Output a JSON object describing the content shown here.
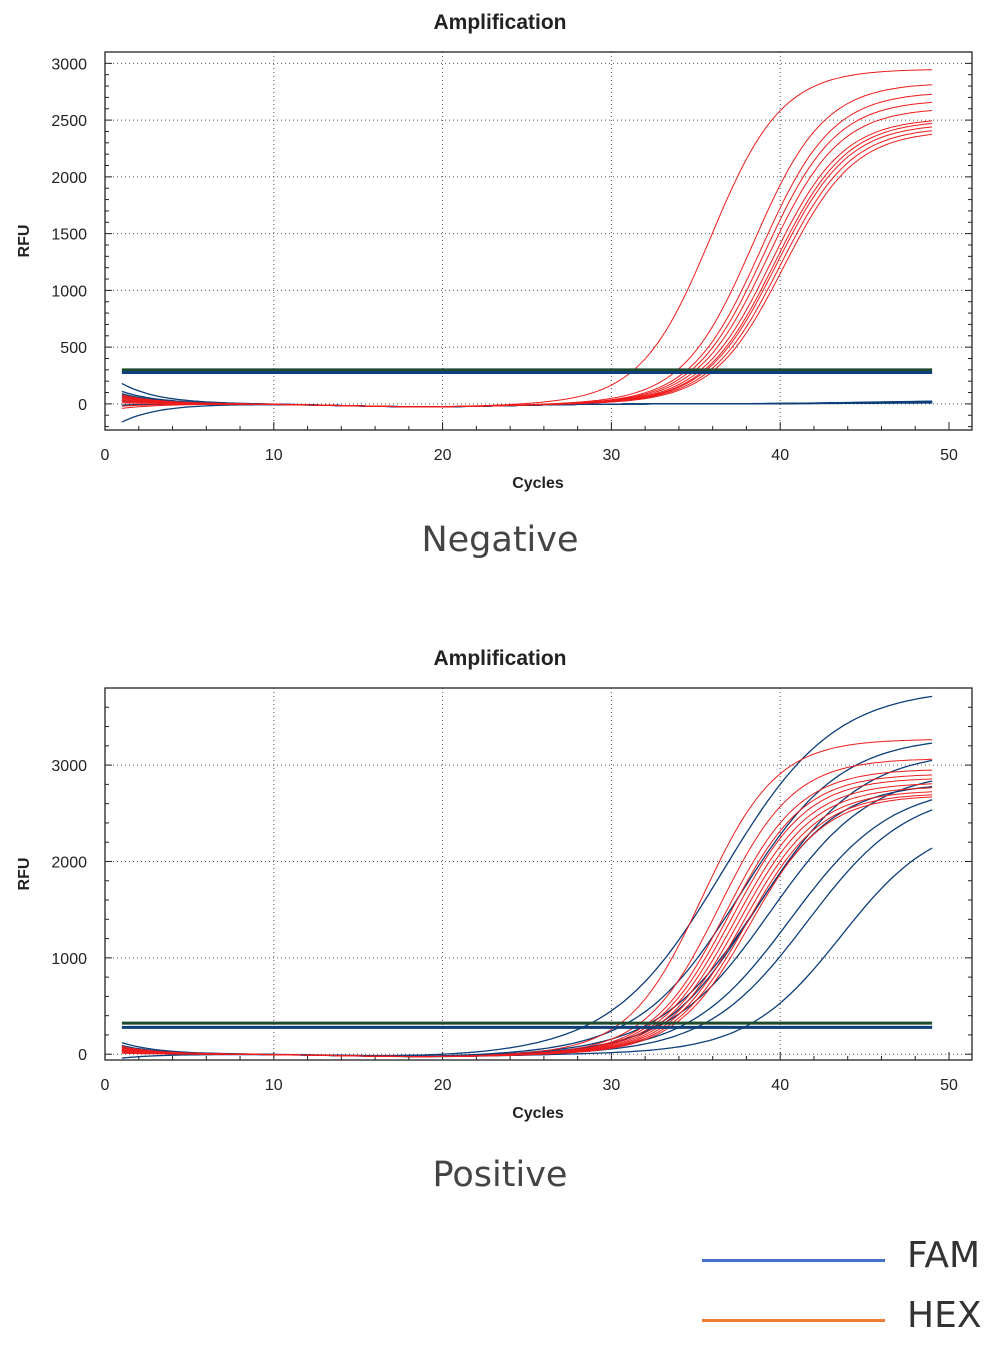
{
  "colors": {
    "hex_curve": "#ee1c1c",
    "fam_curve": "#0d3f7a",
    "threshold_green": "#1e4a2e",
    "threshold_blue": "#0d3f7a",
    "legend_fam": "#4472c4",
    "legend_hex": "#ed7d31"
  },
  "legend": [
    {
      "label": "FAM",
      "color": "#4472c4"
    },
    {
      "label": "HEX",
      "color": "#ed7d31"
    }
  ],
  "chart_data": [
    {
      "type": "line",
      "title": "Amplification",
      "xlabel": "Cycles",
      "ylabel": "RFU",
      "caption": "Negative",
      "xlim": [
        0,
        50
      ],
      "ylim": [
        -230,
        3100
      ],
      "xticks": [
        0,
        10,
        20,
        30,
        40,
        50
      ],
      "yticks": [
        0,
        500,
        1000,
        1500,
        2000,
        2500,
        3000
      ],
      "grid": true,
      "thresholds": [
        {
          "channel": "HEX",
          "value": 300
        },
        {
          "channel": "FAM",
          "value": 276
        }
      ],
      "cycles": [
        1,
        49
      ],
      "series": [
        {
          "channel": "HEX",
          "curves": [
            {
              "plateau": 2950,
              "midpoint": 35.9,
              "slope": 2.1,
              "start": 60
            },
            {
              "plateau": 2830,
              "midpoint": 38.4,
              "slope": 2.1,
              "start": 40
            },
            {
              "plateau": 2750,
              "midpoint": 38.9,
              "slope": 2.1,
              "start": 20
            },
            {
              "plateau": 2680,
              "midpoint": 39.1,
              "slope": 2.1,
              "start": -40
            },
            {
              "plateau": 2610,
              "midpoint": 39.3,
              "slope": 2.1,
              "start": 70
            },
            {
              "plateau": 2520,
              "midpoint": 39.5,
              "slope": 2.1,
              "start": 30
            },
            {
              "plateau": 2500,
              "midpoint": 39.7,
              "slope": 2.1,
              "start": 10
            },
            {
              "plateau": 2470,
              "midpoint": 39.8,
              "slope": 2.1,
              "start": 50
            },
            {
              "plateau": 2440,
              "midpoint": 40.0,
              "slope": 2.1,
              "start": -20
            },
            {
              "plateau": 2410,
              "midpoint": 40.2,
              "slope": 2.1,
              "start": 80
            }
          ]
        },
        {
          "channel": "FAM",
          "curves": [
            {
              "plateau": 20,
              "midpoint": 45,
              "slope": 3,
              "start": 180
            },
            {
              "plateau": 25,
              "midpoint": 45,
              "slope": 3,
              "start": 90
            },
            {
              "plateau": 15,
              "midpoint": 45,
              "slope": 3,
              "start": 60
            },
            {
              "plateau": 30,
              "midpoint": 45,
              "slope": 3,
              "start": 30
            },
            {
              "plateau": 10,
              "midpoint": 45,
              "slope": 3,
              "start": -10
            },
            {
              "plateau": 20,
              "midpoint": 45,
              "slope": 3,
              "start": -160
            },
            {
              "plateau": 25,
              "midpoint": 45,
              "slope": 3,
              "start": 70
            },
            {
              "plateau": 15,
              "midpoint": 45,
              "slope": 3,
              "start": 110
            }
          ]
        }
      ]
    },
    {
      "type": "line",
      "title": "Amplification",
      "xlabel": "Cycles",
      "ylabel": "RFU",
      "caption": "Positive",
      "xlim": [
        0,
        50
      ],
      "ylim": [
        -60,
        3800
      ],
      "xticks": [
        0,
        10,
        20,
        30,
        40,
        50
      ],
      "yticks": [
        0,
        1000,
        2000,
        3000
      ],
      "grid": true,
      "thresholds": [
        {
          "channel": "HEX",
          "value": 323
        },
        {
          "channel": "FAM",
          "value": 278
        }
      ],
      "cycles": [
        1,
        49
      ],
      "series": [
        {
          "channel": "HEX",
          "curves": [
            {
              "plateau": 3270,
              "midpoint": 35.4,
              "slope": 2.2,
              "start": 60
            },
            {
              "plateau": 3070,
              "midpoint": 36.4,
              "slope": 2.2,
              "start": 40
            },
            {
              "plateau": 2960,
              "midpoint": 36.8,
              "slope": 2.2,
              "start": 20
            },
            {
              "plateau": 2910,
              "midpoint": 37.0,
              "slope": 2.2,
              "start": 80
            },
            {
              "plateau": 2870,
              "midpoint": 37.2,
              "slope": 2.2,
              "start": 30
            },
            {
              "plateau": 2820,
              "midpoint": 37.4,
              "slope": 2.2,
              "start": 50
            },
            {
              "plateau": 2780,
              "midpoint": 37.6,
              "slope": 2.2,
              "start": 10
            },
            {
              "plateau": 2740,
              "midpoint": 37.8,
              "slope": 2.2,
              "start": 70
            },
            {
              "plateau": 2710,
              "midpoint": 38.0,
              "slope": 2.2,
              "start": 40
            },
            {
              "plateau": 2690,
              "midpoint": 38.2,
              "slope": 2.2,
              "start": 20
            }
          ]
        },
        {
          "channel": "FAM",
          "curves": [
            {
              "plateau": 3800,
              "midpoint": 36.6,
              "slope": 3.3,
              "start": 120
            },
            {
              "plateau": 3300,
              "midpoint": 37.6,
              "slope": 3.0,
              "start": 90
            },
            {
              "plateau": 3150,
              "midpoint": 38.8,
              "slope": 3.0,
              "start": 70
            },
            {
              "plateau": 2950,
              "midpoint": 39.4,
              "slope": 3.0,
              "start": 50
            },
            {
              "plateau": 2800,
              "midpoint": 40.6,
              "slope": 3.0,
              "start": 30
            },
            {
              "plateau": 2750,
              "midpoint": 41.6,
              "slope": 3.0,
              "start": 40
            },
            {
              "plateau": 2450,
              "midpoint": 43.6,
              "slope": 2.8,
              "start": -40
            },
            {
              "plateau": 2820,
              "midpoint": 38.2,
              "slope": 2.6,
              "start": 60
            }
          ]
        }
      ]
    }
  ]
}
